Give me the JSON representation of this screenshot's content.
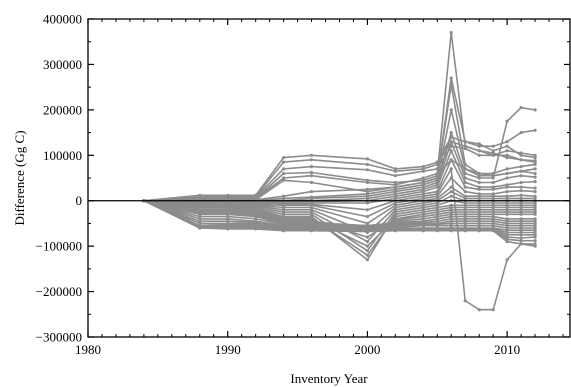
{
  "chart_data": {
    "type": "line",
    "xlabel": "Inventory Year",
    "ylabel": "Difference (Gg C)",
    "xlim": [
      1980,
      2014.5
    ],
    "ylim": [
      -300000,
      400000
    ],
    "xticks": [
      1980,
      1990,
      2000,
      2010
    ],
    "yticks": [
      -300000,
      -200000,
      -100000,
      0,
      100000,
      200000,
      300000,
      400000
    ],
    "x_tick_labels": [
      "1980",
      "1990",
      "2000",
      "2010"
    ],
    "y_tick_labels": [
      "−300000",
      "−200000",
      "−100000",
      "0",
      "100000",
      "200000",
      "300000",
      "400000"
    ],
    "zero_line": true,
    "grid": false,
    "legend": "none",
    "line_color": "#8c8c8c",
    "x": [
      1984,
      1988,
      1990,
      1992,
      1994,
      1996,
      2000,
      2002,
      2004,
      2005,
      2006,
      2007,
      2008,
      2009,
      2010,
      2011,
      2012
    ],
    "series": [
      {
        "values": [
          0,
          12000,
          12000,
          12000,
          95000,
          100000,
          92000,
          70000,
          75000,
          85000,
          140000,
          130000,
          125000,
          110000,
          120000,
          100000,
          95000
        ]
      },
      {
        "values": [
          0,
          8000,
          10000,
          10000,
          85000,
          90000,
          80000,
          65000,
          70000,
          80000,
          130000,
          120000,
          110000,
          105000,
          95000,
          90000,
          88000
        ]
      },
      {
        "values": [
          0,
          5000,
          8000,
          8000,
          70000,
          75000,
          68000,
          55000,
          65000,
          70000,
          120000,
          115000,
          100000,
          100000,
          110000,
          105000,
          100000
        ]
      },
      {
        "values": [
          0,
          5000,
          8000,
          5000,
          60000,
          62000,
          45000,
          40000,
          45000,
          55000,
          90000,
          70000,
          60000,
          55000,
          60000,
          65000,
          70000
        ]
      },
      {
        "values": [
          0,
          2000,
          5000,
          5000,
          50000,
          55000,
          40000,
          35000,
          50000,
          60000,
          370000,
          120000,
          110000,
          100000,
          100000,
          90000,
          85000
        ]
      },
      {
        "values": [
          0,
          2000,
          2000,
          2000,
          45000,
          40000,
          20000,
          30000,
          40000,
          50000,
          270000,
          130000,
          120000,
          120000,
          130000,
          150000,
          155000
        ]
      },
      {
        "values": [
          0,
          0,
          0,
          2000,
          10000,
          20000,
          25000,
          30000,
          40000,
          50000,
          255000,
          80000,
          60000,
          60000,
          70000,
          75000,
          80000
        ]
      },
      {
        "values": [
          0,
          0,
          5000,
          0,
          5000,
          8000,
          15000,
          25000,
          35000,
          45000,
          200000,
          70000,
          55000,
          55000,
          60000,
          65000,
          60000
        ]
      },
      {
        "values": [
          0,
          0,
          0,
          0,
          0,
          5000,
          10000,
          20000,
          30000,
          40000,
          150000,
          60000,
          50000,
          50000,
          175000,
          205000,
          200000
        ]
      },
      {
        "values": [
          0,
          0,
          0,
          0,
          0,
          0,
          5000,
          15000,
          25000,
          35000,
          130000,
          50000,
          40000,
          40000,
          50000,
          55000,
          52000
        ]
      },
      {
        "values": [
          0,
          0,
          0,
          0,
          -2000,
          -2000,
          0,
          10000,
          20000,
          30000,
          110000,
          40000,
          30000,
          30000,
          35000,
          40000,
          42000
        ]
      },
      {
        "values": [
          0,
          -2000,
          -2000,
          -2000,
          -5000,
          -5000,
          -5000,
          5000,
          15000,
          20000,
          90000,
          30000,
          25000,
          25000,
          30000,
          30000,
          28000
        ]
      },
      {
        "values": [
          0,
          -2000,
          -2000,
          -5000,
          -8000,
          -8000,
          -20000,
          0,
          10000,
          15000,
          70000,
          -220000,
          -240000,
          -240000,
          -130000,
          -95000,
          -100000
        ]
      },
      {
        "values": [
          0,
          -5000,
          -5000,
          -8000,
          -10000,
          -10000,
          -35000,
          -5000,
          5000,
          10000,
          50000,
          20000,
          15000,
          15000,
          20000,
          22000,
          20000
        ]
      },
      {
        "values": [
          0,
          -5000,
          -8000,
          -10000,
          -15000,
          -15000,
          -50000,
          -10000,
          0,
          5000,
          30000,
          10000,
          10000,
          10000,
          10000,
          12000,
          10000
        ]
      },
      {
        "values": [
          0,
          -8000,
          -8000,
          -12000,
          -20000,
          -20000,
          -70000,
          -15000,
          -5000,
          0,
          20000,
          5000,
          5000,
          5000,
          5000,
          5000,
          5000
        ]
      },
      {
        "values": [
          0,
          -10000,
          -10000,
          -15000,
          -25000,
          -25000,
          -90000,
          -20000,
          -10000,
          -5000,
          10000,
          0,
          0,
          0,
          0,
          0,
          0
        ]
      },
      {
        "values": [
          0,
          -12000,
          -12000,
          -18000,
          -30000,
          -30000,
          -110000,
          -25000,
          -15000,
          -10000,
          0,
          -5000,
          -5000,
          -5000,
          -5000,
          -5000,
          -5000
        ]
      },
      {
        "values": [
          0,
          -15000,
          -15000,
          -20000,
          -35000,
          -35000,
          -130000,
          -30000,
          -20000,
          -15000,
          -10000,
          -10000,
          -10000,
          -10000,
          -10000,
          -10000,
          -10000
        ]
      },
      {
        "values": [
          0,
          -18000,
          -18000,
          -22000,
          -38000,
          -38000,
          -120000,
          -35000,
          -25000,
          -20000,
          -15000,
          -15000,
          -15000,
          -15000,
          -15000,
          -15000,
          -15000
        ]
      },
      {
        "values": [
          0,
          -20000,
          -20000,
          -25000,
          -40000,
          -40000,
          -100000,
          -40000,
          -30000,
          -25000,
          -20000,
          -20000,
          -20000,
          -20000,
          -20000,
          -20000,
          -20000
        ]
      },
      {
        "values": [
          0,
          -22000,
          -22000,
          -28000,
          -42000,
          -42000,
          -80000,
          -42000,
          -35000,
          -30000,
          -25000,
          -25000,
          -25000,
          -25000,
          -25000,
          -25000,
          -25000
        ]
      },
      {
        "values": [
          0,
          -25000,
          -25000,
          -30000,
          -45000,
          -45000,
          -60000,
          -45000,
          -40000,
          -35000,
          -30000,
          -30000,
          -30000,
          -30000,
          -30000,
          -30000,
          -30000
        ]
      },
      {
        "values": [
          0,
          -28000,
          -28000,
          -32000,
          -48000,
          -48000,
          -55000,
          -48000,
          -45000,
          -40000,
          -35000,
          -35000,
          -35000,
          -35000,
          -40000,
          -40000,
          -40000
        ]
      },
      {
        "values": [
          0,
          -30000,
          -30000,
          -35000,
          -50000,
          -50000,
          -55000,
          -50000,
          -48000,
          -45000,
          -40000,
          -40000,
          -40000,
          -40000,
          -45000,
          -45000,
          -45000
        ]
      },
      {
        "values": [
          0,
          -35000,
          -35000,
          -40000,
          -52000,
          -52000,
          -55000,
          -52000,
          -50000,
          -50000,
          -45000,
          -45000,
          -45000,
          -45000,
          -50000,
          -50000,
          -50000
        ]
      },
      {
        "values": [
          0,
          -40000,
          -40000,
          -45000,
          -55000,
          -55000,
          -58000,
          -55000,
          -52000,
          -52000,
          -50000,
          -50000,
          -50000,
          -50000,
          -55000,
          -55000,
          -55000
        ]
      },
      {
        "values": [
          0,
          -45000,
          -45000,
          -48000,
          -58000,
          -58000,
          -60000,
          -58000,
          -55000,
          -55000,
          -55000,
          -55000,
          -55000,
          -55000,
          -60000,
          -60000,
          -60000
        ]
      },
      {
        "values": [
          0,
          -50000,
          -50000,
          -50000,
          -60000,
          -60000,
          -62000,
          -60000,
          -60000,
          -60000,
          -60000,
          -60000,
          -60000,
          -60000,
          -65000,
          -65000,
          -65000
        ]
      },
      {
        "values": [
          0,
          -55000,
          -52000,
          -52000,
          -62000,
          -62000,
          -64000,
          -62000,
          -62000,
          -62000,
          -62000,
          -62000,
          -62000,
          -62000,
          -70000,
          -70000,
          -70000
        ]
      },
      {
        "values": [
          0,
          -55000,
          -55000,
          -55000,
          -63000,
          -63000,
          -65000,
          -63000,
          -63000,
          -63000,
          -63000,
          -63000,
          -63000,
          -63000,
          -75000,
          -75000,
          -75000
        ]
      },
      {
        "values": [
          0,
          -58000,
          -58000,
          -58000,
          -64000,
          -64000,
          -66000,
          -64000,
          -64000,
          -64000,
          -64000,
          -64000,
          -64000,
          -64000,
          -80000,
          -82000,
          -80000
        ]
      },
      {
        "values": [
          0,
          -60000,
          -60000,
          -60000,
          -65000,
          -65000,
          -67000,
          -65000,
          -65000,
          -65000,
          -65000,
          -65000,
          -65000,
          -65000,
          -85000,
          -88000,
          -88000
        ]
      },
      {
        "values": [
          0,
          -60000,
          -62000,
          -62000,
          -66000,
          -66000,
          -68000,
          -66000,
          -66000,
          -66000,
          -66000,
          -66000,
          -66000,
          -66000,
          -90000,
          -95000,
          -95000
        ]
      }
    ]
  }
}
